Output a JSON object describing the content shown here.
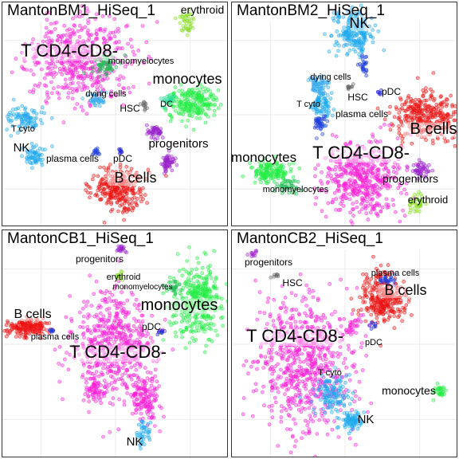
{
  "figure": "scatter-panels",
  "colors": {
    "T CD4-CD8-": "#ff1fd6",
    "monocytes": "#22ee44",
    "B cells": "#ee1111",
    "NK": "#1eaaee",
    "T cyto": "#1eaaee",
    "plasma cells": "#1f3fdd",
    "pDC": "#2222dd",
    "DC": "#22dd99",
    "HSC": "#666666",
    "dying cells": "#33aaee",
    "progenitors": "#9a22cc",
    "erythroid": "#88dd22",
    "monomyelocytes": "#22bb55"
  },
  "panels": [
    {
      "title": "MantonBM1_HiSeq_1",
      "clusters": [
        {
          "label": "T CD4-CD8-",
          "x": 95,
          "y": 72,
          "rx": 60,
          "ry": 48,
          "n": 520,
          "ls": 22,
          "lx": 84,
          "ly": 68,
          "bg": true
        },
        {
          "label": "monomyelocytes",
          "x": 128,
          "y": 80,
          "rx": 16,
          "ry": 12,
          "n": 60,
          "ls": 11,
          "lx": 174,
          "ly": 77
        },
        {
          "label": "monocytes",
          "x": 240,
          "y": 125,
          "rx": 30,
          "ry": 20,
          "n": 220,
          "ls": 18,
          "lx": 232,
          "ly": 102
        },
        {
          "label": "dying cells",
          "x": 118,
          "y": 122,
          "rx": 10,
          "ry": 8,
          "n": 40,
          "ls": 11,
          "lx": 130,
          "ly": 118
        },
        {
          "label": "T cyto",
          "x": 30,
          "y": 145,
          "rx": 22,
          "ry": 14,
          "n": 90,
          "ls": 11,
          "lx": 26,
          "ly": 162
        },
        {
          "label": "NK",
          "x": 40,
          "y": 192,
          "rx": 12,
          "ry": 12,
          "n": 60,
          "ls": 15,
          "lx": 24,
          "ly": 187
        },
        {
          "label": "HSC",
          "x": 178,
          "y": 130,
          "rx": 5,
          "ry": 5,
          "n": 12,
          "ls": 12,
          "lx": 160,
          "ly": 137
        },
        {
          "label": "DC",
          "x": 208,
          "y": 122,
          "rx": 7,
          "ry": 7,
          "n": 20,
          "ls": 11,
          "lx": 206,
          "ly": 131
        },
        {
          "label": "progenitors",
          "x": 192,
          "y": 163,
          "rx": 10,
          "ry": 8,
          "n": 45,
          "ls": 15,
          "lx": 221,
          "ly": 182
        },
        {
          "label": "plasma cells",
          "x": 117,
          "y": 189,
          "rx": 5,
          "ry": 4,
          "n": 15,
          "ls": 12,
          "lx": 88,
          "ly": 200
        },
        {
          "label": "pDC",
          "x": 148,
          "y": 187,
          "rx": 4,
          "ry": 4,
          "n": 8,
          "ls": 12,
          "lx": 151,
          "ly": 200
        },
        {
          "label": "progenitors",
          "x": 208,
          "y": 202,
          "rx": 8,
          "ry": 12,
          "n": 55,
          "ls": 0
        },
        {
          "label": "B cells",
          "x": 146,
          "y": 235,
          "rx": 30,
          "ry": 23,
          "n": 260,
          "ls": 18,
          "lx": 167,
          "ly": 226,
          "bg": true
        },
        {
          "label": "erythroid",
          "x": 232,
          "y": 25,
          "rx": 10,
          "ry": 12,
          "n": 40,
          "ls": 14,
          "lx": 251,
          "ly": 14
        }
      ]
    },
    {
      "title": "MantonBM2_HiSeq_1",
      "clusters": [
        {
          "label": "NK",
          "x": 154,
          "y": 38,
          "rx": 22,
          "ry": 24,
          "n": 220,
          "ls": 18,
          "lx": 160,
          "ly": 32,
          "bg": true
        },
        {
          "label": "dying cells",
          "x": 108,
          "y": 104,
          "rx": 12,
          "ry": 14,
          "n": 70,
          "ls": 11,
          "lx": 124,
          "ly": 97
        },
        {
          "label": "T cyto",
          "x": 112,
          "y": 130,
          "rx": 12,
          "ry": 14,
          "n": 70,
          "ls": 11,
          "lx": 96,
          "ly": 131
        },
        {
          "label": "HSC",
          "x": 148,
          "y": 106,
          "rx": 4,
          "ry": 4,
          "n": 10,
          "ls": 12,
          "lx": 158,
          "ly": 123
        },
        {
          "label": "pDC",
          "x": 186,
          "y": 112,
          "rx": 3,
          "ry": 3,
          "n": 6,
          "ls": 12,
          "lx": 200,
          "ly": 116
        },
        {
          "label": "plasma cells",
          "x": 165,
          "y": 78,
          "rx": 5,
          "ry": 10,
          "n": 25,
          "ls": 12,
          "lx": 163,
          "ly": 144
        },
        {
          "label": "B cells",
          "x": 245,
          "y": 143,
          "rx": 40,
          "ry": 27,
          "n": 330,
          "ls": 20,
          "lx": 253,
          "ly": 165,
          "bg": true
        },
        {
          "label": "T CD4-CD8-",
          "x": 164,
          "y": 222,
          "rx": 44,
          "ry": 42,
          "n": 480,
          "ls": 22,
          "lx": 162,
          "ly": 196,
          "bg": true
        },
        {
          "label": "monocytes",
          "x": 48,
          "y": 212,
          "rx": 24,
          "ry": 14,
          "n": 150,
          "ls": 17,
          "lx": 40,
          "ly": 200
        },
        {
          "label": "monomyelocytes",
          "x": 70,
          "y": 232,
          "rx": 14,
          "ry": 9,
          "n": 40,
          "ls": 11,
          "lx": 80,
          "ly": 238
        },
        {
          "label": "progenitors",
          "x": 238,
          "y": 210,
          "rx": 12,
          "ry": 10,
          "n": 45,
          "ls": 14,
          "lx": 224,
          "ly": 226
        },
        {
          "label": "erythroid",
          "x": 232,
          "y": 252,
          "rx": 8,
          "ry": 12,
          "n": 40,
          "ls": 13,
          "lx": 246,
          "ly": 252
        },
        {
          "label": "plasma cells",
          "x": 110,
          "y": 152,
          "rx": 10,
          "ry": 12,
          "n": 40,
          "ls": 0
        }
      ]
    },
    {
      "title": "MantonCB1_HiSeq_1",
      "clusters": [
        {
          "label": "T CD4-CD8-",
          "x": 140,
          "y": 145,
          "rx": 46,
          "ry": 60,
          "n": 560,
          "ls": 22,
          "lx": 145,
          "ly": 160,
          "bg": true
        },
        {
          "label": "T CD4-CD8-",
          "x": 178,
          "y": 210,
          "rx": 16,
          "ry": 28,
          "n": 140,
          "ls": 0
        },
        {
          "label": "NK",
          "x": 175,
          "y": 255,
          "rx": 10,
          "ry": 14,
          "n": 40,
          "ls": 15,
          "lx": 166,
          "ly": 270
        },
        {
          "label": "monocytes",
          "x": 245,
          "y": 88,
          "rx": 30,
          "ry": 42,
          "n": 380,
          "ls": 20,
          "lx": 222,
          "ly": 100,
          "bg": true
        },
        {
          "label": "monomyelocytes",
          "x": 214,
          "y": 70,
          "rx": 10,
          "ry": 8,
          "n": 25,
          "ls": 10,
          "lx": 176,
          "ly": 74
        },
        {
          "label": "erythroid",
          "x": 146,
          "y": 57,
          "rx": 4,
          "ry": 6,
          "n": 12,
          "ls": 11,
          "lx": 152,
          "ly": 62
        },
        {
          "label": "progenitors",
          "x": 150,
          "y": 25,
          "rx": 6,
          "ry": 6,
          "n": 18,
          "ls": 12,
          "lx": 122,
          "ly": 40
        },
        {
          "label": "B cells",
          "x": 32,
          "y": 122,
          "rx": 22,
          "ry": 10,
          "n": 170,
          "ls": 16,
          "lx": 38,
          "ly": 110,
          "bg": true
        },
        {
          "label": "plasma cells",
          "x": 62,
          "y": 126,
          "rx": 3,
          "ry": 3,
          "n": 8,
          "ls": 11,
          "lx": 66,
          "ly": 137
        },
        {
          "label": "pDC",
          "x": 198,
          "y": 128,
          "rx": 4,
          "ry": 4,
          "n": 8,
          "ls": 12,
          "lx": 187,
          "ly": 125
        },
        {
          "label": "T CD4-CD8-",
          "x": 115,
          "y": 200,
          "rx": 10,
          "ry": 14,
          "n": 50,
          "ls": 0
        }
      ]
    },
    {
      "title": "MantonCB2_HiSeq_1",
      "clusters": [
        {
          "label": "T CD4-CD8-",
          "x": 90,
          "y": 168,
          "rx": 58,
          "ry": 80,
          "n": 700,
          "ls": 22,
          "lx": 79,
          "ly": 140,
          "bg": true
        },
        {
          "label": "T cyto",
          "x": 124,
          "y": 205,
          "rx": 22,
          "ry": 22,
          "n": 120,
          "ls": 11,
          "lx": 123,
          "ly": 182
        },
        {
          "label": "NK",
          "x": 150,
          "y": 240,
          "rx": 14,
          "ry": 10,
          "n": 80,
          "ls": 15,
          "lx": 168,
          "ly": 242
        },
        {
          "label": "B cells",
          "x": 190,
          "y": 84,
          "rx": 26,
          "ry": 30,
          "n": 300,
          "ls": 18,
          "lx": 218,
          "ly": 81,
          "bg": true
        },
        {
          "label": "plasma cells",
          "x": 195,
          "y": 62,
          "rx": 10,
          "ry": 5,
          "n": 25,
          "ls": 11,
          "lx": 205,
          "ly": 57
        },
        {
          "label": "pDC",
          "x": 177,
          "y": 120,
          "rx": 4,
          "ry": 4,
          "n": 8,
          "ls": 11,
          "lx": 178,
          "ly": 144
        },
        {
          "label": "monocytes",
          "x": 262,
          "y": 202,
          "rx": 8,
          "ry": 8,
          "n": 30,
          "ls": 14,
          "lx": 222,
          "ly": 206
        },
        {
          "label": "progenitors",
          "x": 25,
          "y": 28,
          "rx": 5,
          "ry": 4,
          "n": 10,
          "ls": 12,
          "lx": 46,
          "ly": 44
        },
        {
          "label": "HSC",
          "x": 55,
          "y": 56,
          "rx": 4,
          "ry": 4,
          "n": 8,
          "ls": 12,
          "lx": 76,
          "ly": 70
        },
        {
          "label": "T CD4-CD8-",
          "x": 150,
          "y": 120,
          "rx": 10,
          "ry": 14,
          "n": 30,
          "ls": 0
        }
      ]
    }
  ],
  "chart_data": [
    {
      "type": "scatter",
      "title": "MantonBM1_HiSeq_1",
      "series": [
        {
          "name": "T CD4-CD8-"
        },
        {
          "name": "monomyelocytes"
        },
        {
          "name": "monocytes"
        },
        {
          "name": "dying cells"
        },
        {
          "name": "T cyto"
        },
        {
          "name": "NK"
        },
        {
          "name": "HSC"
        },
        {
          "name": "DC"
        },
        {
          "name": "progenitors"
        },
        {
          "name": "plasma cells"
        },
        {
          "name": "pDC"
        },
        {
          "name": "B cells"
        },
        {
          "name": "erythroid"
        }
      ],
      "grid": true
    },
    {
      "type": "scatter",
      "title": "MantonBM2_HiSeq_1",
      "series": [
        {
          "name": "NK"
        },
        {
          "name": "dying cells"
        },
        {
          "name": "T cyto"
        },
        {
          "name": "HSC"
        },
        {
          "name": "pDC"
        },
        {
          "name": "plasma cells"
        },
        {
          "name": "B cells"
        },
        {
          "name": "T CD4-CD8-"
        },
        {
          "name": "monocytes"
        },
        {
          "name": "monomyelocytes"
        },
        {
          "name": "progenitors"
        },
        {
          "name": "erythroid"
        }
      ],
      "grid": true
    },
    {
      "type": "scatter",
      "title": "MantonCB1_HiSeq_1",
      "series": [
        {
          "name": "progenitors"
        },
        {
          "name": "erythroid"
        },
        {
          "name": "monomyelocytes"
        },
        {
          "name": "monocytes"
        },
        {
          "name": "B cells"
        },
        {
          "name": "plasma cells"
        },
        {
          "name": "pDC"
        },
        {
          "name": "T CD4-CD8-"
        },
        {
          "name": "NK"
        }
      ],
      "grid": true
    },
    {
      "type": "scatter",
      "title": "MantonCB2_HiSeq_1",
      "series": [
        {
          "name": "plasma cells"
        },
        {
          "name": "progenitors"
        },
        {
          "name": "HSC"
        },
        {
          "name": "B cells"
        },
        {
          "name": "T CD4-CD8-"
        },
        {
          "name": "pDC"
        },
        {
          "name": "T cyto"
        },
        {
          "name": "monocytes"
        },
        {
          "name": "NK"
        }
      ],
      "grid": true
    }
  ]
}
